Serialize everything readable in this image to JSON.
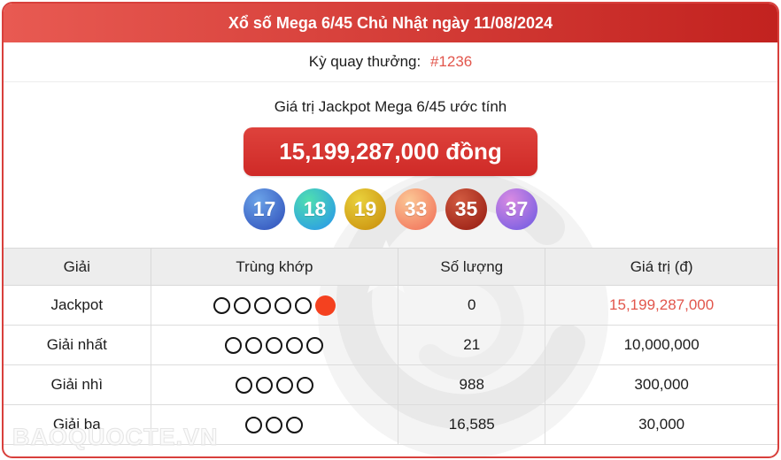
{
  "header": {
    "title": "Xổ số Mega 6/45 Chủ Nhật ngày 11/08/2024"
  },
  "draw": {
    "label": "Kỳ quay thưởng:",
    "number": "#1236"
  },
  "jackpot": {
    "title": "Giá trị Jackpot Mega 6/45 ước tính",
    "amount": "15,199,287,000 đồng"
  },
  "balls": [
    {
      "value": "17",
      "color_top": "#6ba3e8",
      "color_bottom": "#3a5fc3"
    },
    {
      "value": "18",
      "color_top": "#4fdfb0",
      "color_bottom": "#2fa3e0"
    },
    {
      "value": "19",
      "color_top": "#e9d13c",
      "color_bottom": "#cf9a14"
    },
    {
      "value": "33",
      "color_top": "#fbc795",
      "color_bottom": "#f37f63"
    },
    {
      "value": "35",
      "color_top": "#d15a40",
      "color_bottom": "#a1271a"
    },
    {
      "value": "37",
      "color_top": "#d98ae2",
      "color_bottom": "#8263e2"
    }
  ],
  "table": {
    "headers": [
      "Giải",
      "Trùng khớp",
      "Số lượng",
      "Giá trị (đ)"
    ],
    "rows": [
      {
        "prize": "Jackpot",
        "match_open": 5,
        "match_filled": 1,
        "quantity": "0",
        "value": "15,199,287,000",
        "value_highlight": true
      },
      {
        "prize": "Giải nhất",
        "match_open": 5,
        "match_filled": 0,
        "quantity": "21",
        "value": "10,000,000",
        "value_highlight": false
      },
      {
        "prize": "Giải nhì",
        "match_open": 4,
        "match_filled": 0,
        "quantity": "988",
        "value": "300,000",
        "value_highlight": false
      },
      {
        "prize": "Giải ba",
        "match_open": 3,
        "match_filled": 0,
        "quantity": "16,585",
        "value": "30,000",
        "value_highlight": false
      }
    ]
  },
  "watermark": {
    "text": "BAOQUOCTE.VN"
  },
  "colors": {
    "header_gradient_left": "#e85a52",
    "header_gradient_right": "#c2221f",
    "amount_top": "#de423c",
    "amount_bottom": "#cf2a27",
    "value_red": "#e2564c",
    "filled_circle": "#f4411f",
    "card_border": "#d8403c"
  }
}
